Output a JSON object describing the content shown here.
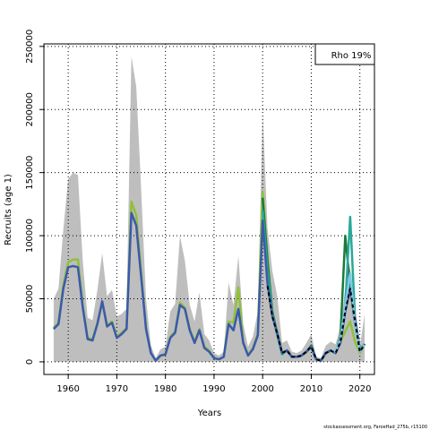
{
  "chart_data": {
    "type": "line",
    "xlabel": "Years",
    "ylabel": "Recruits (age 1)",
    "xlim": [
      1955,
      2023
    ],
    "ylim": [
      -10000,
      252000
    ],
    "xticks": [
      1960,
      1970,
      1980,
      1990,
      2000,
      2010,
      2020
    ],
    "yticks": [
      0,
      50000,
      100000,
      150000,
      200000,
      250000
    ],
    "grid": true,
    "grid_style": "dotted",
    "legend": {
      "label": "Rho 19%",
      "placement": "top-right"
    },
    "credit": "stockassessment.org, FaroeHad_275b, r15100",
    "band": {
      "color": "#bebebe",
      "x": [
        1957,
        1958,
        1959,
        1960,
        1961,
        1962,
        1963,
        1964,
        1965,
        1966,
        1967,
        1968,
        1969,
        1970,
        1971,
        1972,
        1973,
        1974,
        1975,
        1976,
        1977,
        1978,
        1979,
        1980,
        1981,
        1982,
        1983,
        1984,
        1985,
        1986,
        1987,
        1988,
        1989,
        1990,
        1991,
        1992,
        1993,
        1994,
        1995,
        1996,
        1997,
        1998,
        1999,
        2000,
        2001,
        2002,
        2003,
        2004,
        2005,
        2006,
        2007,
        2008,
        2009,
        2010,
        2011,
        2012,
        2013,
        2014,
        2015,
        2016,
        2017,
        2018,
        2019,
        2020,
        2021
      ],
      "upper": [
        50000,
        58000,
        105000,
        145000,
        150000,
        148000,
        80000,
        35000,
        33000,
        57000,
        86000,
        52000,
        57000,
        36000,
        38000,
        42000,
        242000,
        218000,
        138000,
        50000,
        13000,
        3000,
        10000,
        12000,
        40000,
        46000,
        100000,
        80000,
        45000,
        32000,
        55000,
        22000,
        17000,
        7000,
        5000,
        8000,
        63000,
        45000,
        84000,
        30000,
        12000,
        20000,
        40000,
        198000,
        106000,
        72000,
        52000,
        15000,
        17000,
        8000,
        7000,
        9000,
        15000,
        22000,
        4000,
        3000,
        13000,
        16000,
        14000,
        28000,
        58000,
        75000,
        25000,
        12000,
        38000
      ]
    },
    "series": [
      {
        "color": "#90c03a",
        "x": [
          1957,
          1958,
          1959,
          1960,
          1961,
          1962,
          1963,
          1964,
          1965,
          1966,
          1967,
          1968,
          1969,
          1970,
          1971,
          1972,
          1973,
          1974,
          1975,
          1976,
          1977,
          1978,
          1979,
          1980,
          1981,
          1982,
          1983,
          1984,
          1985,
          1986,
          1987,
          1988,
          1989,
          1990,
          1991,
          1992,
          1993,
          1994,
          1995,
          1996,
          1997,
          1998,
          1999,
          2000,
          2001,
          2002,
          2003,
          2004,
          2005,
          2006,
          2007,
          2008,
          2009,
          2010,
          2011,
          2012,
          2013,
          2014,
          2015,
          2016,
          2017,
          2018,
          2019,
          2020,
          2021
        ],
        "values": [
          27000,
          31000,
          61000,
          79000,
          81000,
          81000,
          45000,
          19000,
          18000,
          31000,
          47000,
          29000,
          32000,
          20000,
          23000,
          27000,
          127000,
          116000,
          71000,
          27000,
          7000,
          1000,
          5000,
          6000,
          20000,
          24000,
          47000,
          43000,
          26000,
          16000,
          26000,
          12000,
          9000,
          3000,
          2000,
          4000,
          32000,
          31000,
          59000,
          16000,
          5000,
          11000,
          22000,
          135000,
          82000,
          38000,
          24000,
          7000,
          9000,
          4000,
          4000,
          5000,
          8000,
          12000,
          2000,
          1000,
          7000,
          9000,
          7000,
          16000,
          24000,
          32000,
          16000,
          7000,
          14000
        ]
      },
      {
        "color": "#1a7a3a",
        "x": [
          2000,
          2001,
          2002,
          2003,
          2004,
          2005,
          2006,
          2007,
          2008,
          2009,
          2010,
          2011,
          2012,
          2013,
          2014,
          2015,
          2016,
          2017,
          2018,
          2019,
          2020,
          2021
        ],
        "values": [
          130000,
          80000,
          40000,
          22000,
          7000,
          9000,
          4000,
          4000,
          5000,
          8000,
          13000,
          2000,
          1000,
          7000,
          9000,
          7000,
          20000,
          100000,
          60000,
          30000,
          10000,
          14000
        ]
      },
      {
        "color": "#2aa89a",
        "x": [
          2000,
          2001,
          2002,
          2003,
          2004,
          2005,
          2006,
          2007,
          2008,
          2009,
          2010,
          2011,
          2012,
          2013,
          2014,
          2015,
          2016,
          2017,
          2018,
          2019,
          2020,
          2021
        ],
        "values": [
          120000,
          72000,
          38000,
          21000,
          6000,
          9000,
          4000,
          4000,
          5000,
          8000,
          12000,
          2000,
          1000,
          7000,
          9000,
          7000,
          18000,
          45000,
          115000,
          35000,
          10000,
          14000
        ]
      },
      {
        "color": "#3a5aaa",
        "x": [
          1957,
          1958,
          1959,
          1960,
          1961,
          1962,
          1963,
          1964,
          1965,
          1966,
          1967,
          1968,
          1969,
          1970,
          1971,
          1972,
          1973,
          1974,
          1975,
          1976,
          1977,
          1978,
          1979,
          1980,
          1981,
          1982,
          1983,
          1984,
          1985,
          1986,
          1987,
          1988,
          1989,
          1990,
          1991,
          1992,
          1993,
          1994,
          1995,
          1996,
          1997,
          1998,
          1999,
          2000,
          2001,
          2002,
          2003,
          2004,
          2005,
          2006,
          2007,
          2008,
          2009,
          2010,
          2011,
          2012,
          2013,
          2014,
          2015,
          2016,
          2017,
          2018,
          2019,
          2020,
          2021
        ],
        "values": [
          26000,
          30000,
          58000,
          75000,
          76000,
          75000,
          43000,
          18000,
          17000,
          30000,
          48000,
          28000,
          31000,
          19000,
          22000,
          26000,
          118000,
          108000,
          68000,
          26000,
          7000,
          1000,
          5000,
          6000,
          19000,
          23000,
          45000,
          42000,
          25000,
          15000,
          25000,
          11000,
          8000,
          3000,
          2000,
          4000,
          30000,
          25000,
          42000,
          15000,
          5000,
          10000,
          21000,
          112000,
          62000,
          36000,
          23000,
          7000,
          9000,
          4000,
          4000,
          5000,
          8000,
          12000,
          2000,
          1000,
          7000,
          9000,
          7000,
          15000,
          40000,
          58000,
          35000,
          8000,
          14000
        ]
      },
      {
        "color": "#7ec8e8",
        "x": [
          2014,
          2015,
          2016,
          2017,
          2018,
          2019,
          2020,
          2021
        ],
        "values": [
          9000,
          8000,
          18000,
          45000,
          70000,
          30000,
          8000,
          14000
        ]
      },
      {
        "color": "#000000",
        "dashed": true,
        "x": [
          2001,
          2002,
          2003,
          2004,
          2005,
          2006,
          2007,
          2008,
          2009,
          2010,
          2011,
          2012,
          2013,
          2014,
          2015,
          2016,
          2017,
          2018,
          2019,
          2020,
          2021
        ],
        "values": [
          60000,
          36000,
          22000,
          7000,
          9000,
          4000,
          4000,
          5000,
          8000,
          12000,
          2000,
          1000,
          7000,
          9000,
          7000,
          16000,
          40000,
          58000,
          32000,
          8000,
          14000
        ]
      }
    ]
  }
}
